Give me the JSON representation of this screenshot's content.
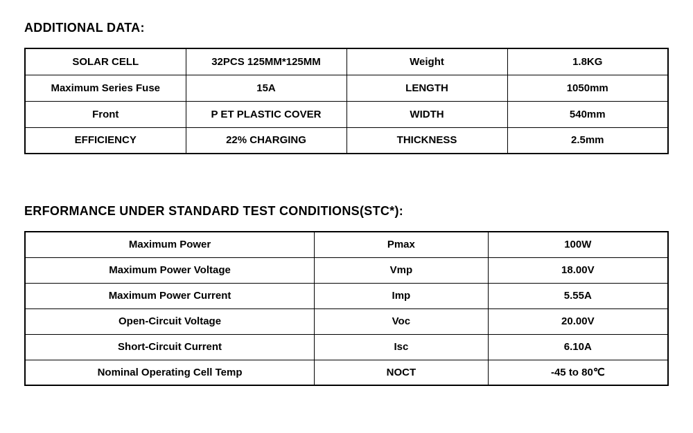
{
  "section1": {
    "title": "ADDITIONAL DATA:",
    "rows": [
      {
        "c1": "SOLAR CELL",
        "c2": "32PCS  125MM*125MM",
        "c3": "Weight",
        "c4": "1.8KG"
      },
      {
        "c1": "Maximum Series Fuse",
        "c2": "15A",
        "c3": "LENGTH",
        "c4": "1050mm"
      },
      {
        "c1": "Front",
        "c2": "P ET  PLASTIC COVER",
        "c3": "WIDTH",
        "c4": "540mm"
      },
      {
        "c1": "EFFICIENCY",
        "c2": "22% CHARGING",
        "c3": "THICKNESS",
        "c4": "2.5mm"
      }
    ]
  },
  "section2": {
    "title": "ERFORMANCE UNDER STANDARD TEST CONDITIONS(STC*):",
    "rows": [
      {
        "param": "Maximum Power",
        "symbol": "Pmax",
        "value": "100W"
      },
      {
        "param": "Maximum Power Voltage",
        "symbol": "Vmp",
        "value": "18.00V"
      },
      {
        "param": "Maximum Power Current",
        "symbol": "Imp",
        "value": "5.55A"
      },
      {
        "param": "Open-Circuit Voltage",
        "symbol": "Voc",
        "value": "20.00V"
      },
      {
        "param": "Short-Circuit Current",
        "symbol": "Isc",
        "value": "6.10A"
      },
      {
        "param": "Nominal Operating Cell Temp",
        "symbol": "NOCT",
        "value": "-45 to 80℃"
      }
    ]
  },
  "styling": {
    "font_family": "Arial, Helvetica, sans-serif",
    "background_color": "#ffffff",
    "text_color": "#000000",
    "border_color": "#000000",
    "outer_border_width": 2.5,
    "inner_border_width": 1,
    "title_fontsize": 18,
    "title_fontweight": 700,
    "cell_fontsize": 15,
    "cell_fontweight": 600,
    "table1_cell_height": 38,
    "table2_cell_height": 37,
    "table2_col_widths": [
      "45%",
      "27%",
      "28%"
    ],
    "section_gap": 72
  }
}
